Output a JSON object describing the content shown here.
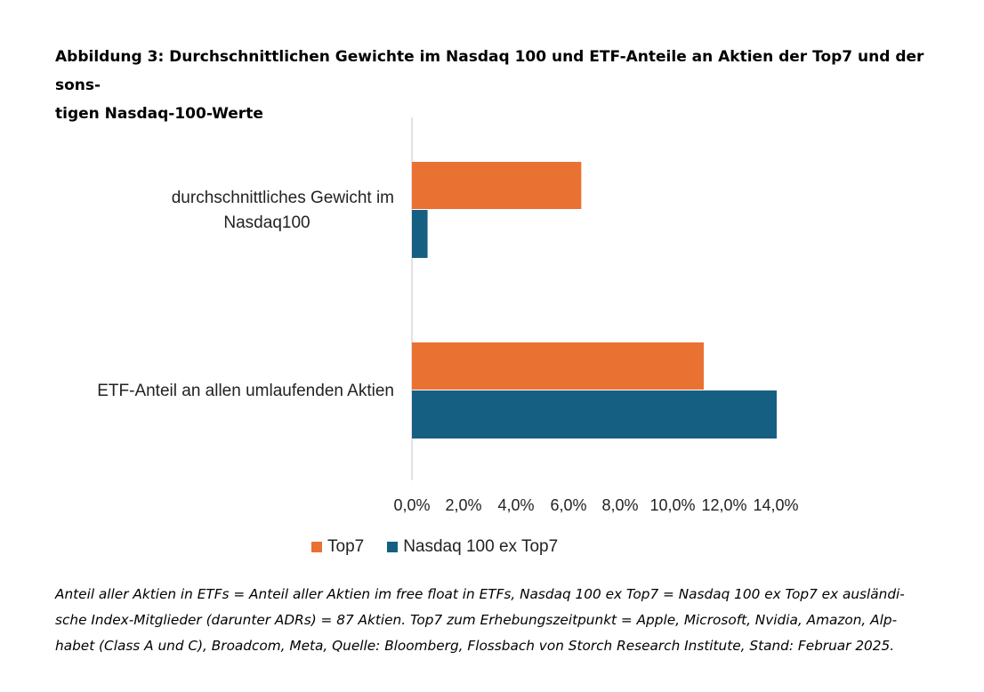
{
  "title_lines": [
    "Abbildung 3: Durchschnittlichen Gewichte im Nasdaq 100 und ETF-Anteile an Aktien der Top7 und der sons-",
    "tigen Nasdaq-100-Werte"
  ],
  "chart_data": {
    "type": "bar",
    "orientation": "horizontal",
    "categories": [
      [
        "durchschnittliches Gewicht im",
        "Nasdaq100"
      ],
      [
        "ETF-Anteil an allen umlaufenden Aktien"
      ]
    ],
    "series": [
      {
        "name": "Top7",
        "color": "#E97132",
        "values": [
          6.5,
          11.2
        ]
      },
      {
        "name": "Nasdaq 100 ex Top7",
        "color": "#156082",
        "values": [
          0.6,
          14.0
        ]
      }
    ],
    "xlim": [
      0,
      14
    ],
    "xticks": [
      "0,0%",
      "2,0%",
      "4,0%",
      "6,0%",
      "8,0%",
      "10,0%",
      "12,0%",
      "14,0%"
    ],
    "axis_color": "#D9D9D9",
    "legend_position": "bottom",
    "grid": false
  },
  "note_lines": [
    "Anteil aller Aktien in ETFs = Anteil aller Aktien im free float in ETFs, Nasdaq 100 ex Top7 = Nasdaq 100 ex Top7 ex ausländi-",
    "sche Index-Mitglieder (darunter ADRs) = 87 Aktien. Top7 zum Erhebungszeitpunkt = Apple, Microsoft, Nvidia, Amazon, Alp-",
    "habet (Class A und C), Broadcom, Meta, Quelle: Bloomberg, Flossbach von Storch Research Institute, Stand: Februar 2025."
  ]
}
